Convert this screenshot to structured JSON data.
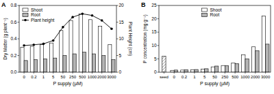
{
  "chart_data": [
    {
      "type": "bar",
      "title": "A",
      "x_label": "P supply (µM)",
      "y_label": "Dry Matter (g plant⁻¹)",
      "y2_label": "Plant Height (cm)",
      "categories": [
        "0",
        "0.2",
        "1",
        "5",
        "50",
        "250",
        "500",
        "1000",
        "2000",
        "3000"
      ],
      "series": [
        {
          "name": "Shoot",
          "color": "#ffffff",
          "values": [
            0.3,
            0.31,
            0.33,
            0.35,
            0.5,
            0.62,
            0.7,
            0.63,
            0.55,
            0.33
          ]
        },
        {
          "name": "Root",
          "color": "#b4b4b4",
          "values": [
            0.14,
            0.15,
            0.16,
            0.17,
            0.2,
            0.22,
            0.24,
            0.22,
            0.2,
            0.15
          ]
        },
        {
          "name": "Plant height",
          "color": "#000000",
          "type": "line",
          "marker": "circle",
          "axis": "y2",
          "values": [
            8.0,
            8.2,
            8.5,
            9.5,
            13.5,
            16.5,
            17.5,
            17.0,
            15.5,
            13.0
          ]
        }
      ],
      "ylim": [
        0,
        0.8
      ],
      "yticks": [
        {
          "value": 0,
          "label": "0.0"
        },
        0.2,
        0.4,
        0.6,
        0.8
      ],
      "y2lim": [
        0,
        20
      ],
      "y2ticks": [
        0,
        5,
        10,
        15,
        20
      ],
      "legend": "upper left",
      "grid": false
    },
    {
      "type": "bar",
      "title": "B",
      "x_label": "P supply (µM)",
      "y_label": "P concentration (mg g⁻¹)",
      "categories": [
        "seed",
        "0",
        "0.2",
        "1",
        "5",
        "50",
        "250",
        "500",
        "1000",
        "2000",
        "3000"
      ],
      "series": [
        {
          "name": "Shoot",
          "color": "#ffffff",
          "values": [
            6.0,
            0.7,
            0.8,
            0.9,
            1.2,
            2.0,
            2.5,
            3.5,
            6.5,
            9.5,
            21.0
          ]
        },
        {
          "name": "Root",
          "color": "#b4b4b4",
          "values": [
            null,
            0.8,
            0.9,
            1.0,
            1.3,
            2.3,
            2.5,
            3.2,
            5.0,
            8.0,
            10.5
          ]
        }
      ],
      "ylim": [
        0,
        25
      ],
      "yticks": [
        0,
        5,
        10,
        15,
        20,
        25
      ],
      "legend": "upper center",
      "grid": false
    }
  ]
}
